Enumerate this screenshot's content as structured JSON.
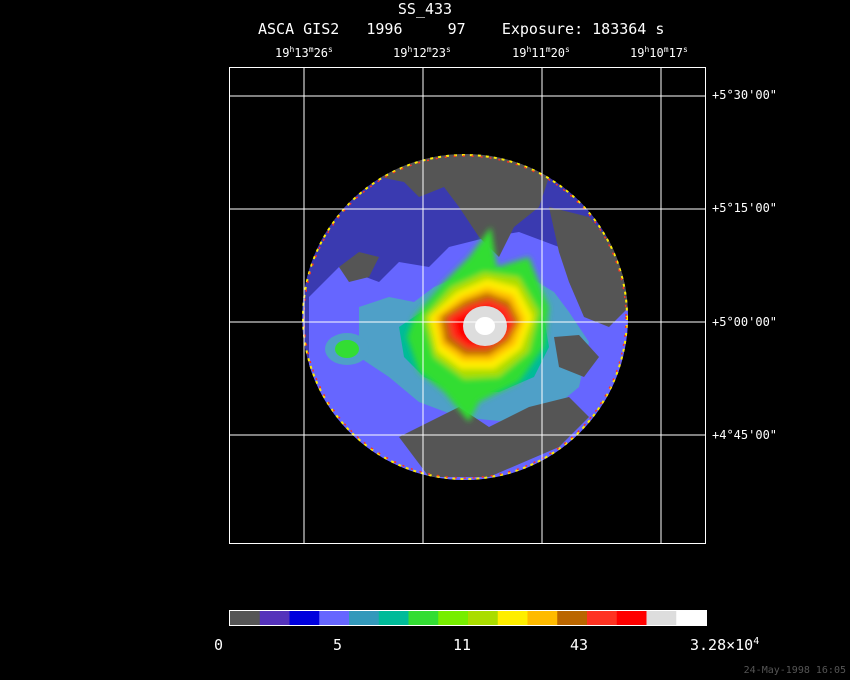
{
  "title": "SS_433",
  "subtitle": "ASCA GIS2   1996     97    Exposure: 183364 s",
  "ra_ticks": [
    {
      "h": "19",
      "m": "13",
      "s": "26"
    },
    {
      "h": "19",
      "m": "12",
      "s": "23"
    },
    {
      "h": "19",
      "m": "11",
      "s": "20"
    },
    {
      "h": "19",
      "m": "10",
      "s": "17"
    }
  ],
  "dec_ticks": [
    "+5°30'00\"",
    "+5°15'00\"",
    "+5°00'00\"",
    "+4°45'00\""
  ],
  "colorbar": {
    "colors": [
      "#555555",
      "#5533bb",
      "#0000dd",
      "#6666ff",
      "#3399bb",
      "#00bb99",
      "#33dd33",
      "#77ee00",
      "#aadd00",
      "#ffee00",
      "#ffbb00",
      "#bb6600",
      "#ff3322",
      "#ff0000",
      "#dddddd",
      "#ffffff"
    ],
    "labels": [
      "0",
      "5",
      "11",
      "43",
      "3.28×10",
      "4"
    ]
  },
  "footer": "24-May-1998 16:05"
}
